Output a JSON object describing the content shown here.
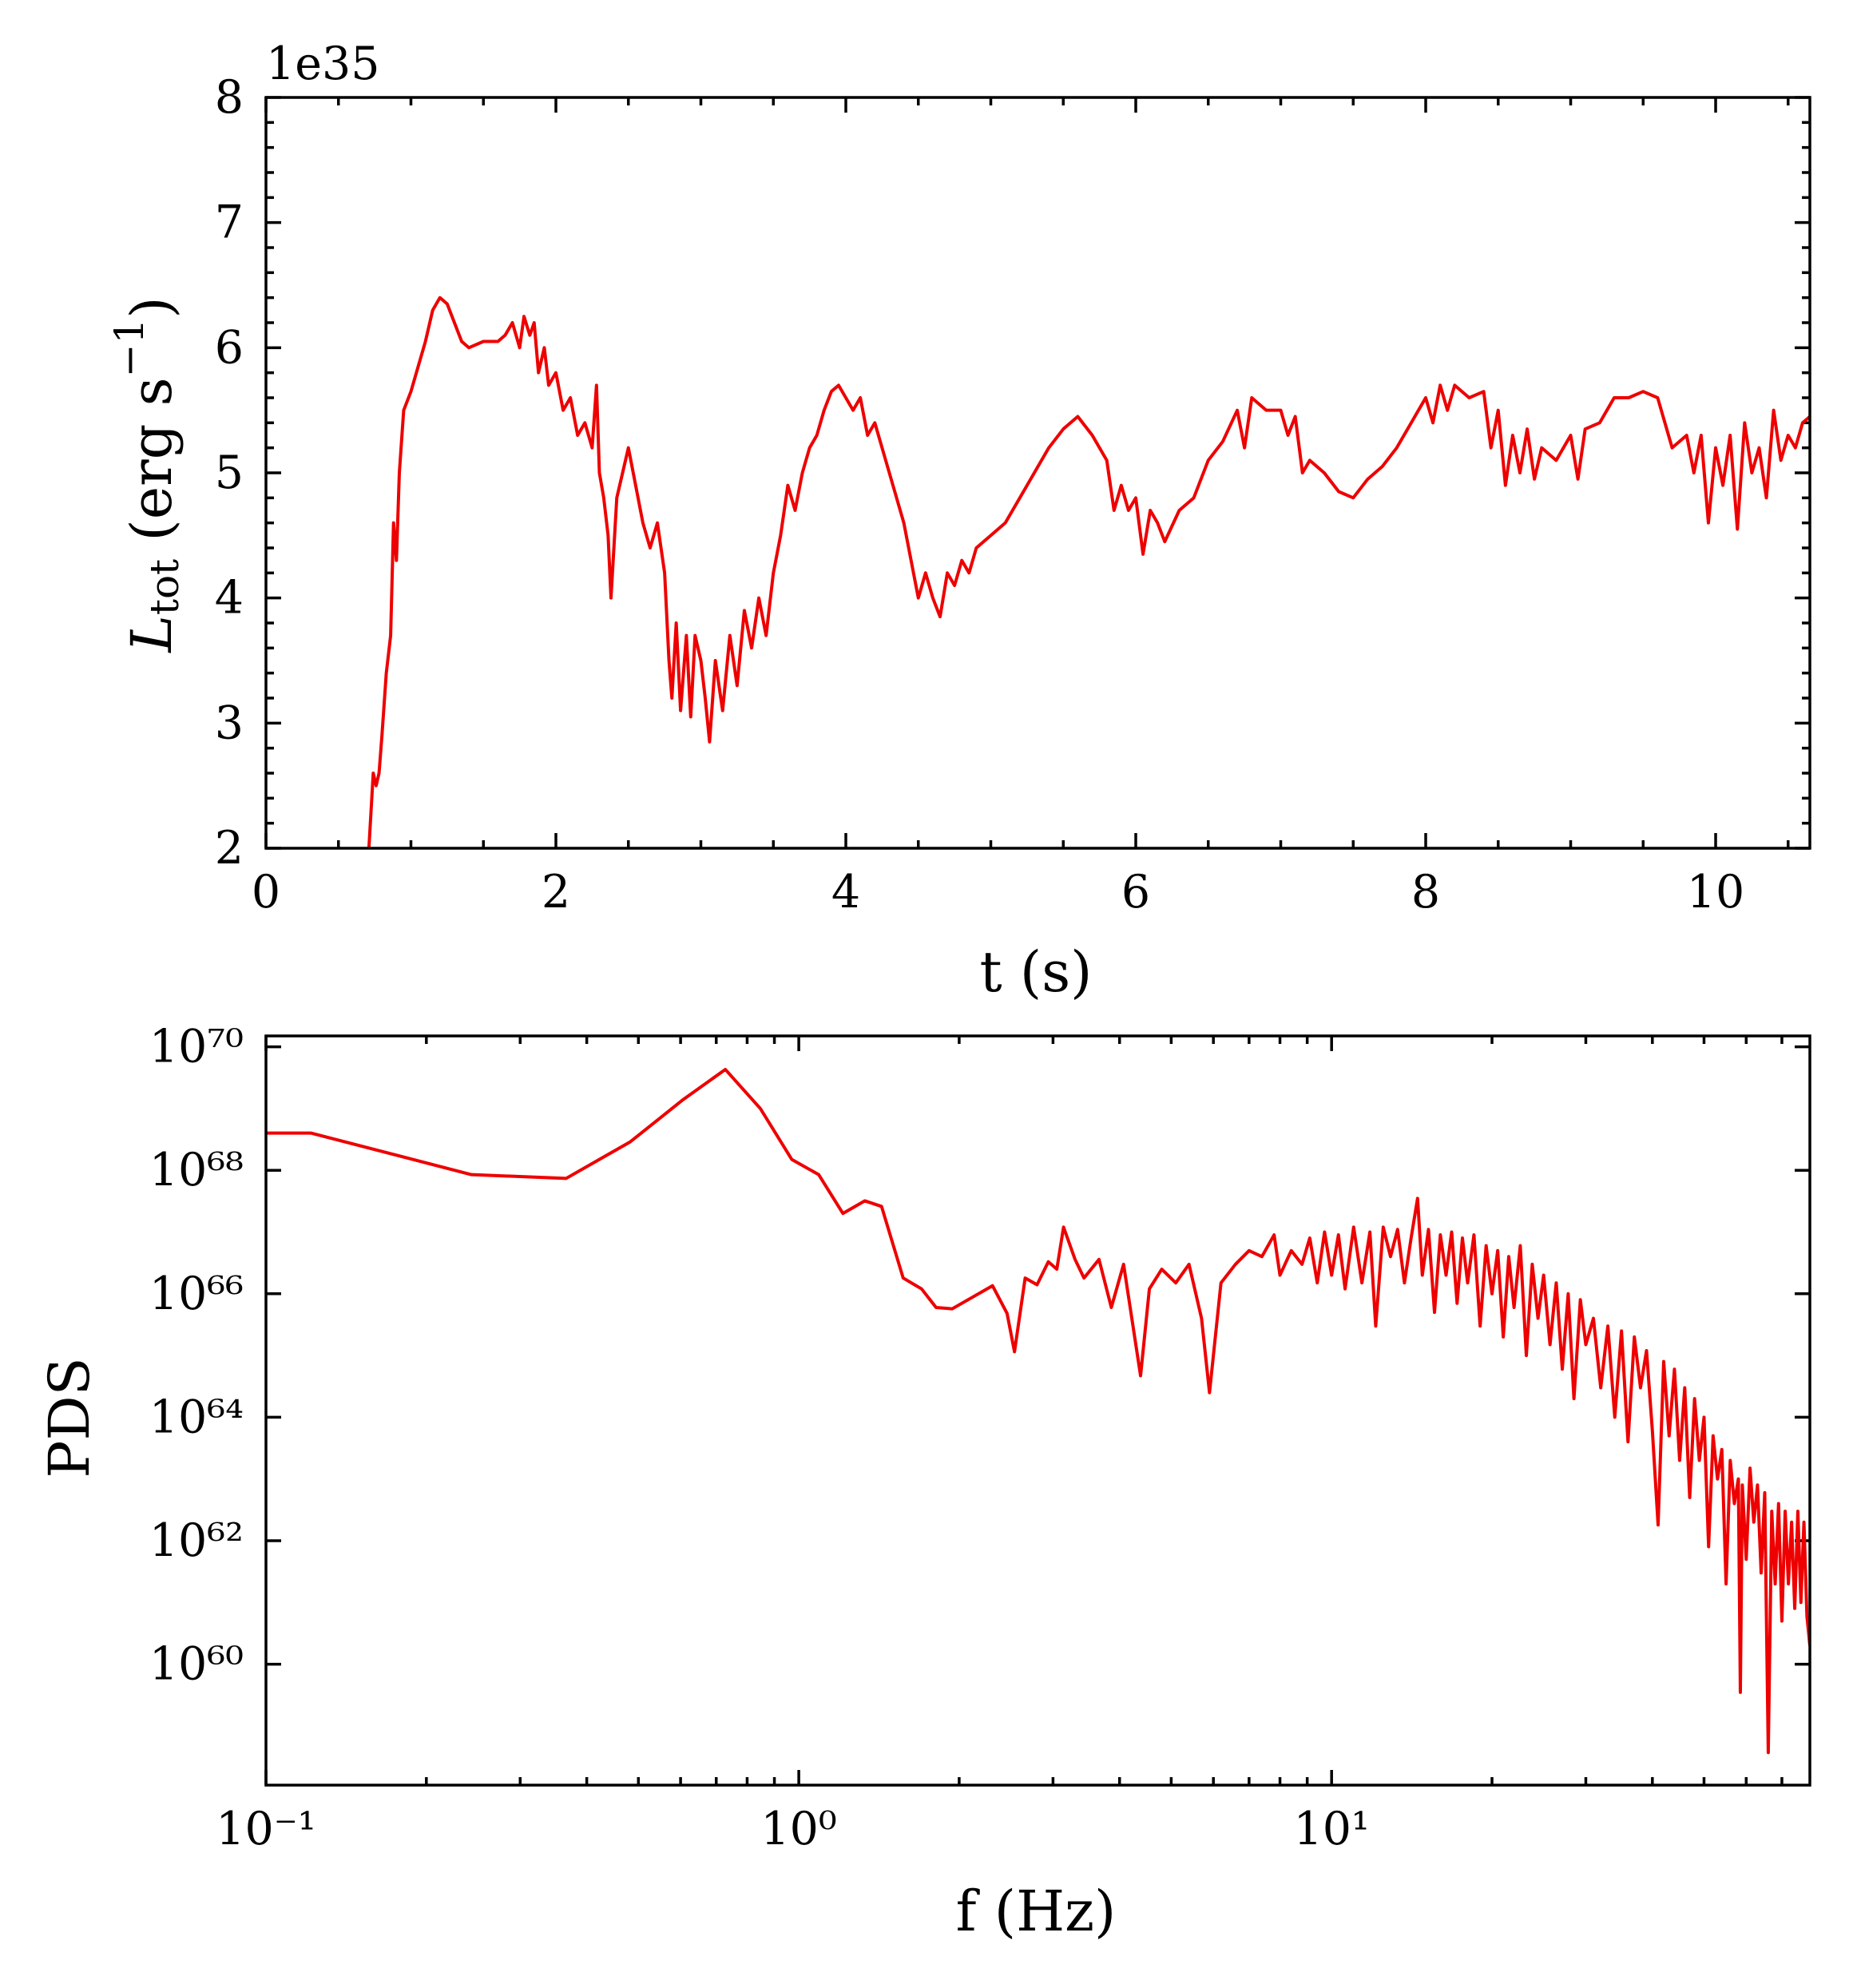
{
  "chart_data": [
    {
      "type": "line",
      "xlabel": "t (s)",
      "ylabel": [
        {
          "text": "L",
          "style": "italic"
        },
        {
          "text": "tot",
          "shift": "sub"
        },
        {
          "text": " (erg s"
        },
        {
          "text": "−1",
          "shift": "super"
        },
        {
          "text": ")"
        }
      ],
      "y_offset_label": "1e35",
      "color": "#ee0000",
      "xlim": [
        0,
        10.65
      ],
      "ylim": [
        2,
        8
      ],
      "xticks": [
        0,
        2,
        4,
        6,
        8,
        10
      ],
      "yticks": [
        2,
        3,
        4,
        5,
        6,
        7,
        8
      ],
      "xminor": 4,
      "yminor": 5,
      "x": [
        0.71,
        0.73,
        0.74,
        0.76,
        0.78,
        0.8,
        0.83,
        0.86,
        0.88,
        0.9,
        0.92,
        0.95,
        1.0,
        1.05,
        1.1,
        1.15,
        1.2,
        1.25,
        1.3,
        1.35,
        1.4,
        1.5,
        1.6,
        1.65,
        1.7,
        1.75,
        1.78,
        1.82,
        1.85,
        1.88,
        1.92,
        1.95,
        2.0,
        2.05,
        2.1,
        2.15,
        2.2,
        2.25,
        2.28,
        2.3,
        2.33,
        2.36,
        2.38,
        2.42,
        2.46,
        2.5,
        2.55,
        2.6,
        2.65,
        2.7,
        2.75,
        2.78,
        2.8,
        2.83,
        2.86,
        2.9,
        2.93,
        2.96,
        3.0,
        3.03,
        3.06,
        3.1,
        3.15,
        3.2,
        3.25,
        3.3,
        3.35,
        3.4,
        3.45,
        3.5,
        3.55,
        3.6,
        3.65,
        3.7,
        3.75,
        3.8,
        3.85,
        3.9,
        3.95,
        4.0,
        4.05,
        4.1,
        4.15,
        4.2,
        4.25,
        4.3,
        4.35,
        4.4,
        4.45,
        4.5,
        4.55,
        4.6,
        4.65,
        4.7,
        4.75,
        4.8,
        4.85,
        4.9,
        5.0,
        5.1,
        5.2,
        5.3,
        5.4,
        5.5,
        5.6,
        5.7,
        5.8,
        5.85,
        5.9,
        5.95,
        6.0,
        6.05,
        6.1,
        6.15,
        6.2,
        6.3,
        6.4,
        6.5,
        6.6,
        6.7,
        6.75,
        6.8,
        6.9,
        7.0,
        7.05,
        7.1,
        7.15,
        7.2,
        7.3,
        7.4,
        7.5,
        7.6,
        7.7,
        7.8,
        7.9,
        8.0,
        8.05,
        8.1,
        8.15,
        8.2,
        8.3,
        8.4,
        8.45,
        8.5,
        8.55,
        8.6,
        8.65,
        8.7,
        8.75,
        8.8,
        8.9,
        9.0,
        9.05,
        9.1,
        9.2,
        9.3,
        9.4,
        9.5,
        9.6,
        9.65,
        9.7,
        9.8,
        9.85,
        9.9,
        9.95,
        10.0,
        10.05,
        10.1,
        10.15,
        10.2,
        10.25,
        10.3,
        10.35,
        10.4,
        10.45,
        10.5,
        10.55,
        10.6,
        10.65
      ],
      "values": [
        2.0,
        2.4,
        2.6,
        2.5,
        2.6,
        2.9,
        3.4,
        3.7,
        4.6,
        4.3,
        5.0,
        5.5,
        5.65,
        5.85,
        6.05,
        6.3,
        6.4,
        6.35,
        6.2,
        6.05,
        6.0,
        6.05,
        6.05,
        6.1,
        6.2,
        6.0,
        6.25,
        6.1,
        6.2,
        5.8,
        6.0,
        5.7,
        5.8,
        5.5,
        5.6,
        5.3,
        5.4,
        5.2,
        5.7,
        5.0,
        4.8,
        4.5,
        4.0,
        4.8,
        5.0,
        5.2,
        4.9,
        4.6,
        4.4,
        4.6,
        4.2,
        3.5,
        3.2,
        3.8,
        3.1,
        3.7,
        3.05,
        3.7,
        3.5,
        3.2,
        2.85,
        3.5,
        3.1,
        3.7,
        3.3,
        3.9,
        3.6,
        4.0,
        3.7,
        4.2,
        4.5,
        4.9,
        4.7,
        5.0,
        5.2,
        5.3,
        5.5,
        5.65,
        5.7,
        5.6,
        5.5,
        5.6,
        5.3,
        5.4,
        5.2,
        5.0,
        4.8,
        4.6,
        4.3,
        4.0,
        4.2,
        4.0,
        3.85,
        4.2,
        4.1,
        4.3,
        4.2,
        4.4,
        4.5,
        4.6,
        4.8,
        5.0,
        5.2,
        5.35,
        5.45,
        5.3,
        5.1,
        4.7,
        4.9,
        4.7,
        4.8,
        4.35,
        4.7,
        4.6,
        4.45,
        4.7,
        4.8,
        5.1,
        5.25,
        5.5,
        5.2,
        5.6,
        5.5,
        5.5,
        5.3,
        5.45,
        5.0,
        5.1,
        5.0,
        4.85,
        4.8,
        4.95,
        5.05,
        5.2,
        5.4,
        5.6,
        5.4,
        5.7,
        5.5,
        5.7,
        5.6,
        5.65,
        5.2,
        5.5,
        4.9,
        5.3,
        5.0,
        5.35,
        4.95,
        5.2,
        5.1,
        5.3,
        4.95,
        5.35,
        5.4,
        5.6,
        5.6,
        5.65,
        5.6,
        5.4,
        5.2,
        5.3,
        5.0,
        5.3,
        4.6,
        5.2,
        4.9,
        5.3,
        4.55,
        5.4,
        5.0,
        5.2,
        4.8,
        5.5,
        5.1,
        5.3,
        5.2,
        5.4,
        5.45
      ]
    },
    {
      "type": "line",
      "xlabel": "f (Hz)",
      "ylabel": [
        {
          "text": "PDS"
        }
      ],
      "color": "#ee0000",
      "xscale": "log",
      "yscale": "log",
      "xminor": "log",
      "xlim": [
        0.1,
        79
      ],
      "ylim": [
        1.1e+58,
        1.5e+70
      ],
      "xticks": [
        {
          "value": 0.1,
          "label": "10⁻¹"
        },
        {
          "value": 1,
          "label": "10⁰"
        },
        {
          "value": 10,
          "label": "10¹"
        }
      ],
      "yticks": [
        {
          "value": 1e+60,
          "label": "10⁶⁰"
        },
        {
          "value": 1e+62,
          "label": "10⁶²"
        },
        {
          "value": 1e+64,
          "label": "10⁶⁴"
        },
        {
          "value": 1e+66,
          "label": "10⁶⁶"
        },
        {
          "value": 1e+68,
          "label": "10⁶⁸"
        },
        {
          "value": 1e+70,
          "label": "10⁷⁰"
        }
      ],
      "x": [
        0.1,
        0.1216,
        0.243,
        0.366,
        0.483,
        0.607,
        0.728,
        0.847,
        0.97,
        1.09,
        1.21,
        1.33,
        1.43,
        1.57,
        1.7,
        1.81,
        1.94,
        2.31,
        2.46,
        2.54,
        2.66,
        2.8,
        2.94,
        3.05,
        3.14,
        3.3,
        3.43,
        3.66,
        3.86,
        4.07,
        4.38,
        4.55,
        4.8,
        5.1,
        5.4,
        5.7,
        5.9,
        6.2,
        6.6,
        7.0,
        7.4,
        7.8,
        8.0,
        8.4,
        8.8,
        9.1,
        9.4,
        9.7,
        10.0,
        10.3,
        10.6,
        11.0,
        11.4,
        11.8,
        12.1,
        12.5,
        12.9,
        13.3,
        13.7,
        14.1,
        14.5,
        14.8,
        15.2,
        15.6,
        16.0,
        16.4,
        16.8,
        17.2,
        17.6,
        18.0,
        18.5,
        19.0,
        19.5,
        20.0,
        20.5,
        21.0,
        21.5,
        22.0,
        22.6,
        23.2,
        23.8,
        24.4,
        25.0,
        25.7,
        26.4,
        27.1,
        27.8,
        28.5,
        29.3,
        30,
        31,
        32,
        33,
        34,
        35,
        36,
        37,
        38,
        39,
        40,
        41,
        42,
        43,
        44,
        45,
        46,
        47,
        48,
        49,
        50,
        51,
        52,
        53,
        54,
        55,
        56,
        57,
        58,
        58.5,
        59,
        60,
        61,
        62,
        63,
        64,
        65,
        66,
        67,
        68,
        69,
        70,
        71,
        72,
        73,
        74,
        75,
        76,
        77,
        78,
        79
      ],
      "values": [
        4e+68,
        4e+68,
        8.5e+67,
        7.4e+67,
        2.9e+68,
        1.4e+69,
        4.3e+69,
        1e+69,
        1.5e+68,
        8.5e+67,
        2e+67,
        3.2e+67,
        2.6e+67,
        1.8e+66,
        1.2e+66,
        6e+65,
        5.7e+65,
        1.35e+66,
        4.8e+65,
        1.15e+65,
        1.8e+66,
        1.4e+66,
        3.3e+66,
        2.5e+66,
        1.2e+67,
        3.6e+66,
        1.8e+66,
        3.6e+66,
        6e+65,
        3e+66,
        4.7e+64,
        1.2e+66,
        2.5e+66,
        1.5e+66,
        3e+66,
        4e+65,
        2.5e+64,
        1.5e+66,
        3e+66,
        5e+66,
        4e+66,
        9e+66,
        2e+66,
        5e+66,
        3e+66,
        8e+66,
        1.5e+66,
        1e+67,
        2e+66,
        9e+66,
        1.2e+66,
        1.2e+67,
        1.5e+66,
        1e+67,
        3e+65,
        1.2e+67,
        4e+66,
        1.1e+67,
        1.5e+66,
        8e+66,
        3.5e+67,
        2e+66,
        1.1e+67,
        5e+65,
        9e+66,
        2e+66,
        1e+67,
        7e+65,
        8e+66,
        1.5e+66,
        9e+66,
        3e+65,
        6e+66,
        1e+66,
        5e+66,
        2e+65,
        4e+66,
        6e+65,
        6e+66,
        1e+65,
        3e+66,
        4e+65,
        2e+66,
        1.5e+65,
        1.5e+66,
        6e+64,
        1e+66,
        2e+64,
        8e+65,
        1.5e+65,
        4e+65,
        3e+64,
        3e+65,
        1e+64,
        2.5e+65,
        4e+63,
        2e+65,
        3e+64,
        1.2e+65,
        6e+63,
        1.8e+62,
        8e+64,
        5e+63,
        6e+64,
        2e+63,
        3e+64,
        5e+62,
        2e+64,
        2e+63,
        1e+64,
        8e+61,
        5e+63,
        1e+63,
        3e+63,
        2e+61,
        2e+63,
        4e+62,
        1e+63,
        3.5e+59,
        8e+62,
        5e+61,
        1.5e+63,
        2e+62,
        8e+62,
        3e+61,
        6e+62,
        3.7e+58,
        3e+62,
        2e+61,
        4e+62,
        5e+60,
        3e+62,
        2e+61,
        2e+62,
        8e+60,
        3e+62,
        1e+61,
        2e+62,
        6e+60,
        2e+60
      ]
    }
  ]
}
